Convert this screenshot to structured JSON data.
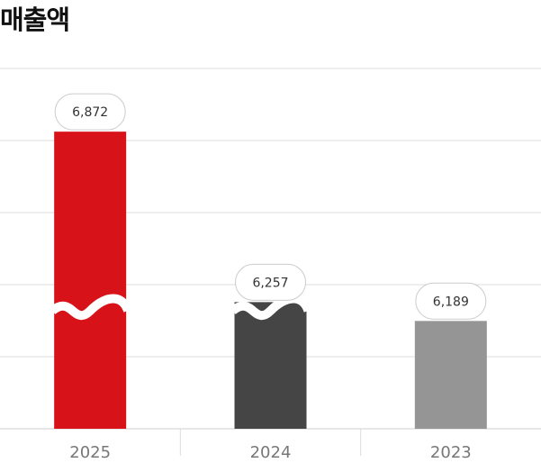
{
  "chart_data": {
    "type": "bar",
    "title": "매출액",
    "categories": [
      "2025",
      "2024",
      "2023"
    ],
    "values": [
      6872,
      6257,
      6189
    ],
    "value_labels": [
      "6,872",
      "6,257",
      "6,189"
    ],
    "colors": [
      "#d71219",
      "#454545",
      "#959595"
    ],
    "axis_break": true,
    "grid": true,
    "ylim": [
      5800,
      7100
    ]
  }
}
